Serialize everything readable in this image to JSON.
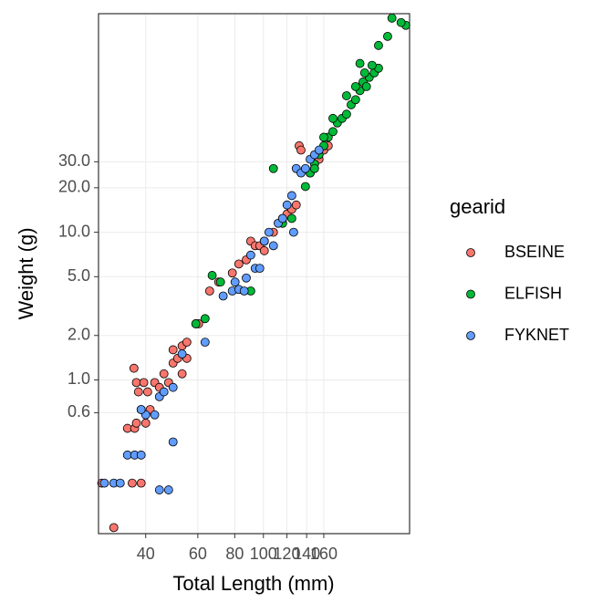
{
  "chart_data": {
    "type": "scatter",
    "x_label": "Total Length (mm)",
    "y_label": "Weight (g)",
    "legend_title": "gearid",
    "log_x": true,
    "log_y": true,
    "grid": true,
    "legend": "right",
    "xlim": [
      27.7,
      312
    ],
    "ylim": [
      0.091,
      302
    ],
    "xticks": [
      40,
      60,
      80,
      100,
      120,
      140,
      160
    ],
    "yticks": [
      {
        "value": 0.6,
        "label": "0.6"
      },
      {
        "value": 1,
        "label": "1.0"
      },
      {
        "value": 2,
        "label": "2.0"
      },
      {
        "value": 5,
        "label": "5.0"
      },
      {
        "value": 10,
        "label": "10.0"
      },
      {
        "value": 20,
        "label": "20.0"
      },
      {
        "value": 30,
        "label": "30.0"
      }
    ],
    "series": [
      {
        "name": "BSEINE",
        "color": "#F8766D",
        "x": [
          28.4,
          31.2,
          36.0,
          38.6,
          34.7,
          36.7,
          37.2,
          38.6,
          40,
          41.4,
          36.5,
          37.2,
          37.8,
          39.4,
          40.6,
          42.9,
          44.5,
          46.1,
          47.8,
          49.5,
          51.3,
          53.1,
          55.1,
          49.5,
          53.1,
          55.1,
          59.1,
          60.4,
          65.8,
          70.6,
          78.5,
          82.6,
          87.5,
          90.6,
          93.8,
          97.2,
          100.7,
          108.1,
          116.1,
          120.2,
          124.7,
          129.1,
          132.1,
          134.0,
          143.9,
          148.9,
          154.2,
          160.0,
          165.6
        ],
        "y": [
          0.2,
          0.1,
          0.2,
          0.2,
          0.47,
          0.47,
          0.51,
          0.63,
          0.51,
          0.63,
          1.2,
          0.96,
          0.83,
          0.96,
          0.83,
          0.96,
          0.89,
          1.1,
          0.96,
          1.3,
          1.4,
          1.1,
          1.4,
          1.6,
          1.7,
          1.8,
          2.4,
          2.4,
          4.0,
          4.6,
          5.3,
          6.1,
          6.5,
          8.7,
          8.1,
          8.1,
          7.5,
          10,
          12.4,
          13.3,
          14.3,
          15.3,
          38.5,
          36,
          25.2,
          31.2,
          31.2,
          36,
          38.5
        ]
      },
      {
        "name": "ELFISH",
        "color": "#00BA38",
        "x": [
          108.1,
          67.1,
          71.6,
          59.1,
          63.5,
          90.6,
          124.7,
          138.7,
          143.9,
          148.9,
          154.2,
          160.0,
          165.6,
          171.8,
          177.8,
          184.5,
          191,
          198,
          205,
          212,
          217,
          223,
          228,
          237,
          245,
          245,
          263,
          272,
          303,
          292,
          191,
          205,
          212,
          220,
          233,
          171.8,
          160.0,
          148.9,
          116.1,
          100.7
        ],
        "y": [
          27.0,
          5.1,
          4.6,
          2.4,
          2.6,
          4.0,
          12.4,
          20.4,
          25.2,
          29.0,
          33.5,
          38.5,
          44,
          48,
          55,
          59,
          63,
          73,
          79,
          91,
          104,
          97,
          112,
          120,
          129,
          184,
          212,
          282,
          252,
          263,
          84,
          97,
          139,
          120,
          135,
          59,
          44,
          27.0,
          11.5,
          8.7
        ]
      },
      {
        "name": "FYKNET",
        "color": "#619CFF",
        "x": [
          29.0,
          31.2,
          32.8,
          34.7,
          36.7,
          38.6,
          44.5,
          47.8,
          49.5,
          40,
          42.9,
          44.5,
          46.1,
          49.5,
          38.6,
          53.1,
          63.5,
          73.1,
          78.5,
          80.2,
          82.6,
          86.1,
          87.5,
          93.8,
          100.7,
          104.4,
          112.2,
          116.1,
          120.2,
          124.7,
          129.1,
          134.0,
          138.7,
          143.9,
          148.9,
          154.2,
          126.5,
          108.1,
          97.2,
          90.6
        ],
        "y": [
          0.2,
          0.2,
          0.2,
          0.31,
          0.31,
          0.31,
          0.18,
          0.18,
          0.38,
          0.58,
          0.58,
          0.77,
          0.83,
          0.89,
          0.63,
          1.5,
          1.8,
          3.7,
          4.0,
          4.6,
          4.1,
          4.0,
          4.9,
          5.7,
          8.7,
          10,
          11.5,
          12.4,
          15.3,
          17.7,
          27.0,
          25.2,
          27.0,
          31.2,
          33.5,
          36,
          10,
          8.1,
          5.7,
          7.0
        ]
      }
    ]
  }
}
